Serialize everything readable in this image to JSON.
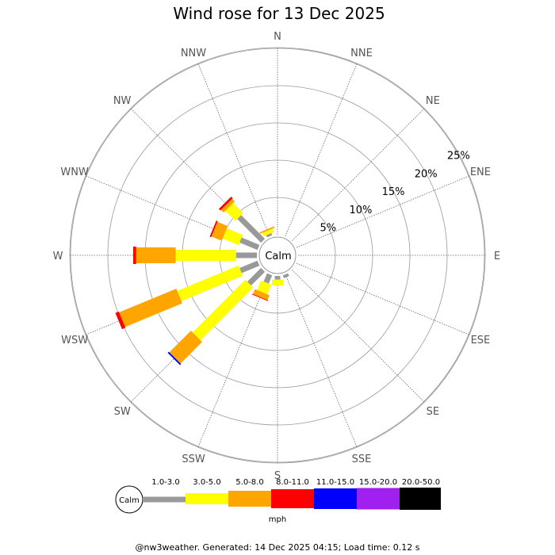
{
  "chart_data": {
    "type": "wind-rose",
    "title": "Wind rose for 13 Dec 2025",
    "directions": [
      "N",
      "NNE",
      "NE",
      "ENE",
      "E",
      "ESE",
      "SE",
      "SSE",
      "S",
      "SSW",
      "SW",
      "WSW",
      "W",
      "WNW",
      "NW",
      "NNW"
    ],
    "ring_labels": [
      "5%",
      "10%",
      "15%",
      "20%",
      "25%"
    ],
    "rings_percent": [
      5,
      10,
      15,
      20,
      25
    ],
    "calm_label": "Calm",
    "unit_label": "mph",
    "speed_bins": [
      {
        "label": "1.0-3.0",
        "color": "#999999"
      },
      {
        "label": "3.0-5.0",
        "color": "#ffff00"
      },
      {
        "label": "5.0-8.0",
        "color": "#ffa500"
      },
      {
        "label": "8.0-11.0",
        "color": "#ff0000"
      },
      {
        "label": "11.0-15.0",
        "color": "#0000ff"
      },
      {
        "label": "15.0-20.0",
        "color": "#a020f0"
      },
      {
        "label": "20.0-50.0",
        "color": "#000000"
      }
    ],
    "series_percent": {
      "N": [
        0,
        0,
        0,
        0,
        0,
        0,
        0
      ],
      "NNE": [
        0,
        0,
        0,
        0,
        0,
        0,
        0
      ],
      "NE": [
        0,
        0,
        0,
        0,
        0,
        0,
        0
      ],
      "ENE": [
        0,
        0,
        0,
        0,
        0,
        0,
        0
      ],
      "E": [
        0,
        0,
        0,
        0,
        0,
        0,
        0
      ],
      "ESE": [
        0,
        0,
        0,
        0,
        0,
        0,
        0
      ],
      "SE": [
        0,
        0,
        0,
        0,
        0,
        0,
        0
      ],
      "SSE": [
        0.4,
        0,
        0,
        0,
        0,
        0,
        0
      ],
      "S": [
        0.5,
        0.8,
        0,
        0,
        0,
        0,
        0
      ],
      "SSW": [
        1.2,
        1.4,
        0.7,
        0.1,
        0,
        0,
        0
      ],
      "SW": [
        2.6,
        10.0,
        4.1,
        0,
        0.2,
        0,
        0
      ],
      "WSW": [
        2.6,
        8.9,
        8.3,
        0.5,
        0,
        0,
        0
      ],
      "W": [
        2.8,
        8.1,
        5.3,
        0.4,
        0,
        0,
        0
      ],
      "WNW": [
        2.6,
        2.3,
        1.5,
        0.2,
        0,
        0,
        0
      ],
      "NW": [
        4.5,
        1.9,
        0.5,
        0.3,
        0,
        0,
        0
      ],
      "NNW": [
        0.3,
        0.5,
        0.2,
        0,
        0,
        0,
        0
      ]
    },
    "footer": "@nw3weather. Generated: 14 Dec 2025 04:15; Load time: 0.12 s"
  }
}
